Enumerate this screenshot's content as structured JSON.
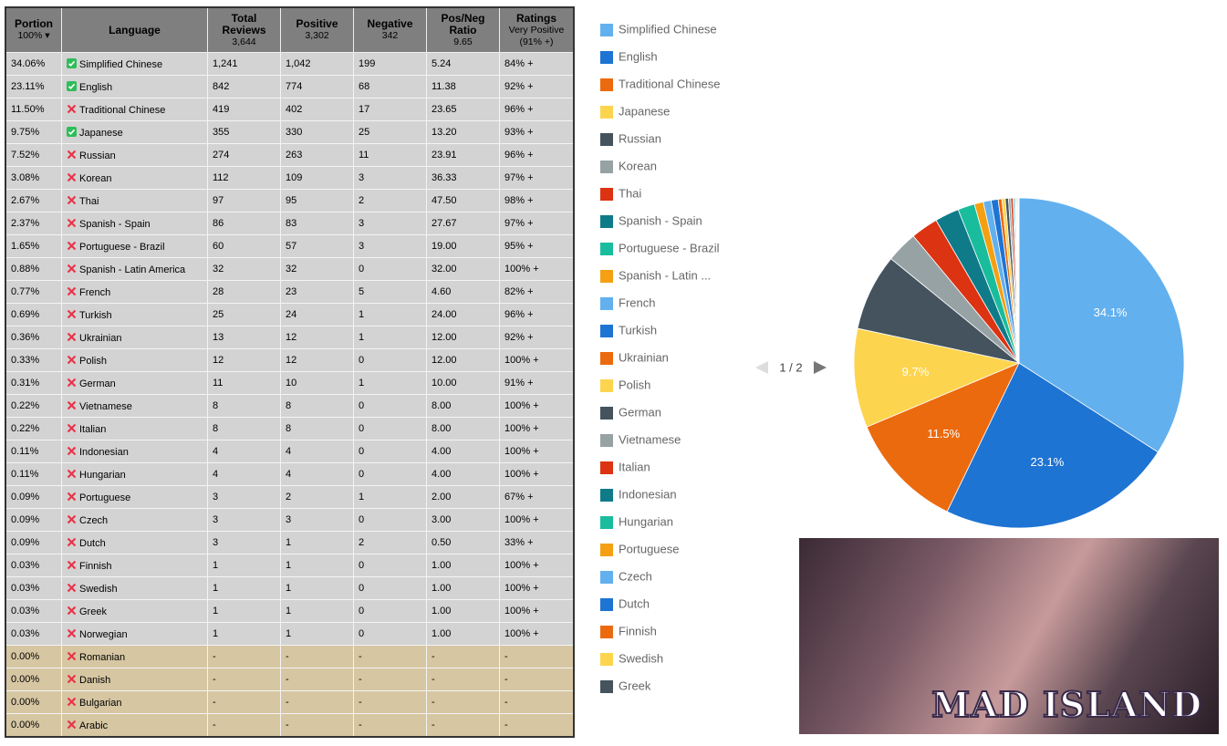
{
  "table": {
    "headers": [
      {
        "title": "Portion",
        "sub": "100% ▾"
      },
      {
        "title": "Language"
      },
      {
        "title": "Total Reviews",
        "sub": "3,644"
      },
      {
        "title": "Positive",
        "sub": "3,302"
      },
      {
        "title": "Negative",
        "sub": "342"
      },
      {
        "title": "Pos/Neg Ratio",
        "sub": "9.65"
      },
      {
        "title": "Ratings",
        "sub": "Very Positive (91% +)"
      }
    ],
    "rows": [
      {
        "portion": "34.06%",
        "supported": true,
        "language": "Simplified Chinese",
        "total": "1,241",
        "positive": "1,042",
        "negative": "199",
        "ratio": "5.24",
        "rating": "84% +"
      },
      {
        "portion": "23.11%",
        "supported": true,
        "language": "English",
        "total": "842",
        "positive": "774",
        "negative": "68",
        "ratio": "11.38",
        "rating": "92% +"
      },
      {
        "portion": "11.50%",
        "supported": false,
        "language": "Traditional Chinese",
        "total": "419",
        "positive": "402",
        "negative": "17",
        "ratio": "23.65",
        "rating": "96% +"
      },
      {
        "portion": "9.75%",
        "supported": true,
        "language": "Japanese",
        "total": "355",
        "positive": "330",
        "negative": "25",
        "ratio": "13.20",
        "rating": "93% +"
      },
      {
        "portion": "7.52%",
        "supported": false,
        "language": "Russian",
        "total": "274",
        "positive": "263",
        "negative": "11",
        "ratio": "23.91",
        "rating": "96% +"
      },
      {
        "portion": "3.08%",
        "supported": false,
        "language": "Korean",
        "total": "112",
        "positive": "109",
        "negative": "3",
        "ratio": "36.33",
        "rating": "97% +"
      },
      {
        "portion": "2.67%",
        "supported": false,
        "language": "Thai",
        "total": "97",
        "positive": "95",
        "negative": "2",
        "ratio": "47.50",
        "rating": "98% +"
      },
      {
        "portion": "2.37%",
        "supported": false,
        "language": "Spanish - Spain",
        "total": "86",
        "positive": "83",
        "negative": "3",
        "ratio": "27.67",
        "rating": "97% +"
      },
      {
        "portion": "1.65%",
        "supported": false,
        "language": "Portuguese - Brazil",
        "total": "60",
        "positive": "57",
        "negative": "3",
        "ratio": "19.00",
        "rating": "95% +"
      },
      {
        "portion": "0.88%",
        "supported": false,
        "language": "Spanish - Latin America",
        "total": "32",
        "positive": "32",
        "negative": "0",
        "ratio": "32.00",
        "rating": "100% +"
      },
      {
        "portion": "0.77%",
        "supported": false,
        "language": "French",
        "total": "28",
        "positive": "23",
        "negative": "5",
        "ratio": "4.60",
        "rating": "82% +"
      },
      {
        "portion": "0.69%",
        "supported": false,
        "language": "Turkish",
        "total": "25",
        "positive": "24",
        "negative": "1",
        "ratio": "24.00",
        "rating": "96% +"
      },
      {
        "portion": "0.36%",
        "supported": false,
        "language": "Ukrainian",
        "total": "13",
        "positive": "12",
        "negative": "1",
        "ratio": "12.00",
        "rating": "92% +"
      },
      {
        "portion": "0.33%",
        "supported": false,
        "language": "Polish",
        "total": "12",
        "positive": "12",
        "negative": "0",
        "ratio": "12.00",
        "rating": "100% +"
      },
      {
        "portion": "0.31%",
        "supported": false,
        "language": "German",
        "total": "11",
        "positive": "10",
        "negative": "1",
        "ratio": "10.00",
        "rating": "91% +"
      },
      {
        "portion": "0.22%",
        "supported": false,
        "language": "Vietnamese",
        "total": "8",
        "positive": "8",
        "negative": "0",
        "ratio": "8.00",
        "rating": "100% +"
      },
      {
        "portion": "0.22%",
        "supported": false,
        "language": "Italian",
        "total": "8",
        "positive": "8",
        "negative": "0",
        "ratio": "8.00",
        "rating": "100% +"
      },
      {
        "portion": "0.11%",
        "supported": false,
        "language": "Indonesian",
        "total": "4",
        "positive": "4",
        "negative": "0",
        "ratio": "4.00",
        "rating": "100% +"
      },
      {
        "portion": "0.11%",
        "supported": false,
        "language": "Hungarian",
        "total": "4",
        "positive": "4",
        "negative": "0",
        "ratio": "4.00",
        "rating": "100% +"
      },
      {
        "portion": "0.09%",
        "supported": false,
        "language": "Portuguese",
        "total": "3",
        "positive": "2",
        "negative": "1",
        "ratio": "2.00",
        "rating": "67% +"
      },
      {
        "portion": "0.09%",
        "supported": false,
        "language": "Czech",
        "total": "3",
        "positive": "3",
        "negative": "0",
        "ratio": "3.00",
        "rating": "100% +"
      },
      {
        "portion": "0.09%",
        "supported": false,
        "language": "Dutch",
        "total": "3",
        "positive": "1",
        "negative": "2",
        "ratio": "0.50",
        "rating": "33% +"
      },
      {
        "portion": "0.03%",
        "supported": false,
        "language": "Finnish",
        "total": "1",
        "positive": "1",
        "negative": "0",
        "ratio": "1.00",
        "rating": "100% +"
      },
      {
        "portion": "0.03%",
        "supported": false,
        "language": "Swedish",
        "total": "1",
        "positive": "1",
        "negative": "0",
        "ratio": "1.00",
        "rating": "100% +"
      },
      {
        "portion": "0.03%",
        "supported": false,
        "language": "Greek",
        "total": "1",
        "positive": "1",
        "negative": "0",
        "ratio": "1.00",
        "rating": "100% +"
      },
      {
        "portion": "0.03%",
        "supported": false,
        "language": "Norwegian",
        "total": "1",
        "positive": "1",
        "negative": "0",
        "ratio": "1.00",
        "rating": "100% +"
      },
      {
        "portion": "0.00%",
        "supported": false,
        "language": "Romanian",
        "total": "-",
        "positive": "-",
        "negative": "-",
        "ratio": "-",
        "rating": "-"
      },
      {
        "portion": "0.00%",
        "supported": false,
        "language": "Danish",
        "total": "-",
        "positive": "-",
        "negative": "-",
        "ratio": "-",
        "rating": "-"
      },
      {
        "portion": "0.00%",
        "supported": false,
        "language": "Bulgarian",
        "total": "-",
        "positive": "-",
        "negative": "-",
        "ratio": "-",
        "rating": "-"
      },
      {
        "portion": "0.00%",
        "supported": false,
        "language": "Arabic",
        "total": "-",
        "positive": "-",
        "negative": "-",
        "ratio": "-",
        "rating": "-"
      }
    ]
  },
  "chart_data": {
    "type": "pie",
    "categories": [
      "Simplified Chinese",
      "English",
      "Traditional Chinese",
      "Japanese",
      "Russian",
      "Korean",
      "Thai",
      "Spanish - Spain",
      "Portuguese - Brazil",
      "Spanish - Latin ...",
      "French",
      "Turkish",
      "Ukrainian",
      "Polish",
      "German",
      "Vietnamese",
      "Italian",
      "Indonesian",
      "Hungarian",
      "Portuguese",
      "Czech",
      "Dutch",
      "Finnish",
      "Swedish",
      "Greek"
    ],
    "values": [
      34.1,
      23.1,
      11.5,
      9.7,
      7.52,
      3.08,
      2.67,
      2.37,
      1.65,
      0.88,
      0.77,
      0.69,
      0.36,
      0.33,
      0.31,
      0.22,
      0.22,
      0.11,
      0.11,
      0.09,
      0.09,
      0.09,
      0.03,
      0.03,
      0.03
    ],
    "value_labels": [
      "34.1%",
      "23.1%",
      "11.5%",
      "9.7%",
      null,
      null,
      null,
      null,
      null,
      null,
      null,
      null,
      null,
      null,
      null,
      null,
      null,
      null,
      null,
      null,
      null,
      null,
      null,
      null,
      null
    ],
    "colors": [
      "#63b0ee",
      "#1e74d2",
      "#ec6a0e",
      "#fdd44e",
      "#44535e",
      "#97a2a5",
      "#dc3312",
      "#0f7b89",
      "#19bd9d",
      "#f5a012"
    ],
    "legend_page": "1 / 2"
  },
  "banner": {
    "title": "MAD ISLAND"
  }
}
